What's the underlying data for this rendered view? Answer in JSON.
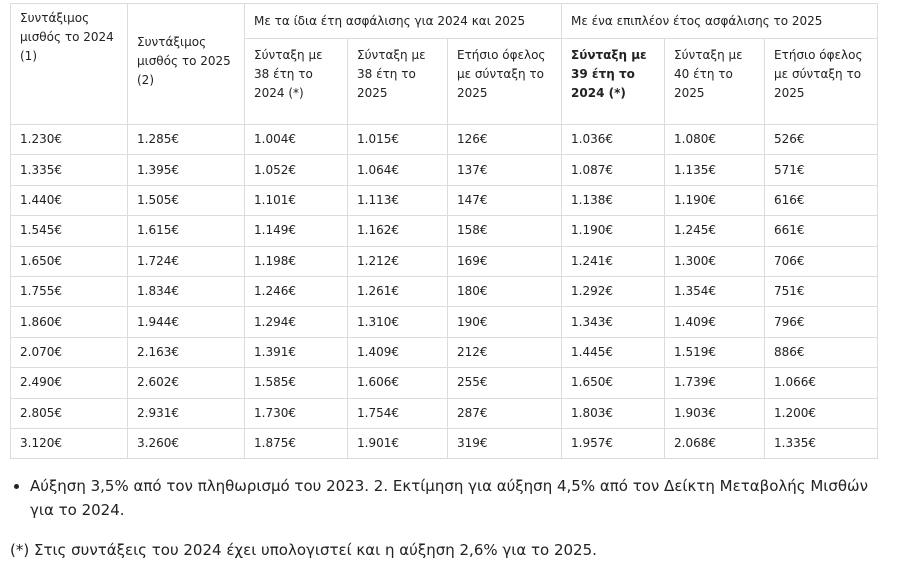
{
  "table": {
    "header": {
      "col1": "Συντάξιμος μισθός το 2024 (1)",
      "col2": "Συντάξιμος μισθός το 2025 (2)",
      "groups": [
        "Με τα ίδια έτη ασφάλισης για 2024 και 2025",
        "Με ένα επιπλέον έτος ασφάλισης το 2025"
      ],
      "subheaders": [
        "Σύνταξη με 38 έτη το 2024 (*)",
        "Σύνταξη με 38 έτη το 2025",
        "Ετήσιο όφελος με σύνταξη το 2025",
        "Σύνταξη με 39 έτη το 2024 (*)",
        "Σύνταξη με 40 έτη το 2025",
        "Ετήσιο όφελος με σύνταξη το 2025"
      ]
    },
    "rows": [
      [
        "1.230€",
        "1.285€",
        "1.004€",
        "1.015€",
        "126€",
        "1.036€",
        "1.080€",
        "526€"
      ],
      [
        "1.335€",
        "1.395€",
        "1.052€",
        "1.064€",
        "137€",
        "1.087€",
        "1.135€",
        "571€"
      ],
      [
        "1.440€",
        "1.505€",
        "1.101€",
        "1.113€",
        "147€",
        "1.138€",
        "1.190€",
        "616€"
      ],
      [
        "1.545€",
        "1.615€",
        "1.149€",
        "1.162€",
        "158€",
        "1.190€",
        "1.245€",
        "661€"
      ],
      [
        "1.650€",
        "1.724€",
        "1.198€",
        "1.212€",
        "169€",
        "1.241€",
        "1.300€",
        "706€"
      ],
      [
        "1.755€",
        "1.834€",
        "1.246€",
        "1.261€",
        "180€",
        "1.292€",
        "1.354€",
        "751€"
      ],
      [
        "1.860€",
        "1.944€",
        "1.294€",
        "1.310€",
        "190€",
        "1.343€",
        "1.409€",
        "796€"
      ],
      [
        "2.070€",
        "2.163€",
        "1.391€",
        "1.409€",
        "212€",
        "1.445€",
        "1.519€",
        "886€"
      ],
      [
        "2.490€",
        "2.602€",
        "1.585€",
        "1.606€",
        "255€",
        "1.650€",
        "1.739€",
        "1.066€"
      ],
      [
        "2.805€",
        "2.931€",
        "1.730€",
        "1.754€",
        "287€",
        "1.803€",
        "1.903€",
        "1.200€"
      ],
      [
        "3.120€",
        "3.260€",
        "1.875€",
        "1.901€",
        "319€",
        "1.957€",
        "2.068€",
        "1.335€"
      ]
    ]
  },
  "notes": {
    "bullet": "Αύξηση 3,5% από τον πληθωρισμό του 2023. 2. Εκτίμηση για αύξηση 4,5% από τον Δείκτη Μεταβολής Μισθών για το 2024.",
    "footnote": "(*) Στις συντάξεις του 2024 έχει υπολογιστεί και η αύξηση 2,6% για το 2025."
  }
}
